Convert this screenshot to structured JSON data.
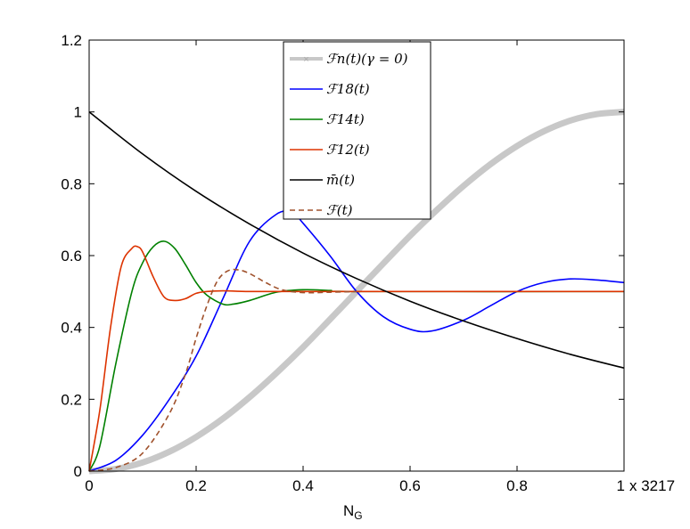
{
  "chart_data": {
    "type": "line",
    "xlabel": "N",
    "xlabel_sub": "G",
    "x_multiplier": "x 3217",
    "xlim": [
      0,
      1
    ],
    "ylim": [
      0,
      1.2
    ],
    "xticks": [
      "0",
      "0.2",
      "0.4",
      "0.6",
      "0.8",
      "1"
    ],
    "yticks": [
      "0",
      "0.2",
      "0.4",
      "0.6",
      "0.8",
      "1",
      "1.2"
    ],
    "grid": false,
    "legend_position": "top-center",
    "series": [
      {
        "name": "ℱn(t)(γ = 0)",
        "color": "#c8c8c8",
        "style": "thick-marker",
        "x": [
          0,
          0.05,
          0.1,
          0.15,
          0.2,
          0.25,
          0.3,
          0.35,
          0.4,
          0.45,
          0.5,
          0.55,
          0.6,
          0.65,
          0.7,
          0.75,
          0.8,
          0.85,
          0.9,
          0.95,
          1.0
        ],
        "y": [
          0,
          0.006,
          0.024,
          0.054,
          0.095,
          0.146,
          0.206,
          0.273,
          0.345,
          0.422,
          0.5,
          0.578,
          0.655,
          0.727,
          0.794,
          0.854,
          0.905,
          0.946,
          0.976,
          0.994,
          1.0
        ]
      },
      {
        "name": "ℱ18(t)",
        "color": "#0000ff",
        "style": "solid",
        "x": [
          0,
          0.05,
          0.1,
          0.15,
          0.2,
          0.25,
          0.3,
          0.35,
          0.38,
          0.4,
          0.45,
          0.5,
          0.55,
          0.6,
          0.64,
          0.7,
          0.75,
          0.8,
          0.85,
          0.9,
          0.95,
          1.0
        ],
        "y": [
          0,
          0.03,
          0.1,
          0.2,
          0.32,
          0.48,
          0.64,
          0.715,
          0.72,
          0.69,
          0.6,
          0.5,
          0.43,
          0.395,
          0.39,
          0.42,
          0.46,
          0.5,
          0.525,
          0.535,
          0.532,
          0.525
        ]
      },
      {
        "name": "ℱ14t)",
        "color": "#008000",
        "style": "solid",
        "x": [
          0,
          0.02,
          0.05,
          0.08,
          0.1,
          0.12,
          0.14,
          0.16,
          0.18,
          0.2,
          0.22,
          0.25,
          0.27,
          0.3,
          0.35,
          0.4,
          0.45,
          0.5,
          1.0
        ],
        "y": [
          0,
          0.07,
          0.3,
          0.5,
          0.58,
          0.625,
          0.64,
          0.62,
          0.575,
          0.525,
          0.49,
          0.465,
          0.465,
          0.475,
          0.498,
          0.505,
          0.503,
          0.5,
          0.5
        ]
      },
      {
        "name": "ℱ12(t)",
        "color": "#dd3300",
        "style": "solid",
        "x": [
          0,
          0.02,
          0.04,
          0.06,
          0.08,
          0.09,
          0.1,
          0.12,
          0.14,
          0.16,
          0.18,
          0.2,
          0.22,
          0.25,
          0.3,
          0.4,
          0.5,
          1.0
        ],
        "y": [
          0,
          0.17,
          0.4,
          0.57,
          0.62,
          0.625,
          0.61,
          0.54,
          0.485,
          0.475,
          0.48,
          0.495,
          0.5,
          0.502,
          0.5,
          0.5,
          0.5,
          0.5
        ]
      },
      {
        "name": "m̄(t)",
        "color": "#000000",
        "style": "solid",
        "x": [
          0,
          0.1,
          0.2,
          0.3,
          0.4,
          0.5,
          0.6,
          0.7,
          0.8,
          0.9,
          1.0
        ],
        "y": [
          1.0,
          0.883,
          0.779,
          0.688,
          0.607,
          0.536,
          0.473,
          0.418,
          0.369,
          0.325,
          0.287
        ]
      },
      {
        "name": "ℱ(t)",
        "color": "#a0522d",
        "style": "dashed",
        "x": [
          0,
          0.05,
          0.1,
          0.15,
          0.18,
          0.2,
          0.22,
          0.24,
          0.26,
          0.28,
          0.3,
          0.33,
          0.36,
          0.4,
          0.45,
          0.5
        ],
        "y": [
          0,
          0.01,
          0.05,
          0.16,
          0.27,
          0.37,
          0.46,
          0.53,
          0.558,
          0.56,
          0.55,
          0.525,
          0.505,
          0.497,
          0.498,
          0.5
        ]
      }
    ]
  }
}
